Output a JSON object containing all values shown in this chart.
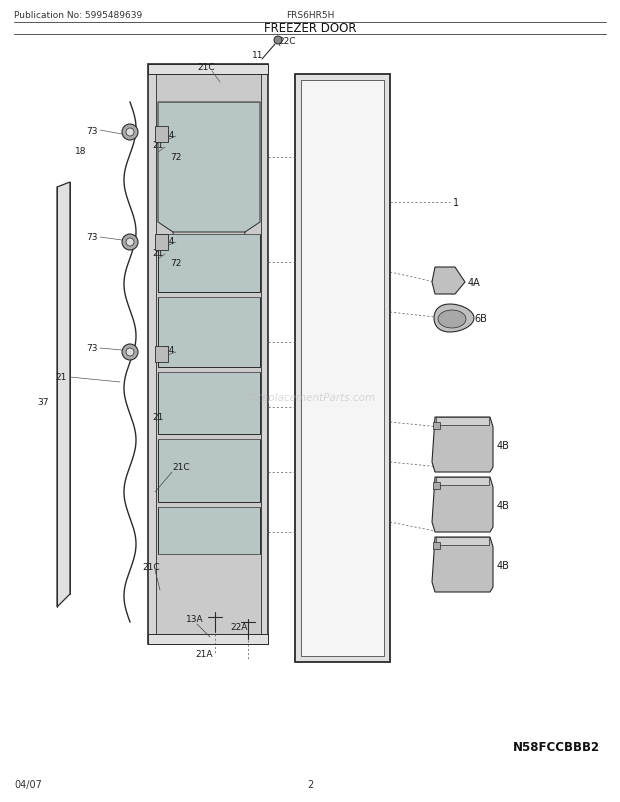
{
  "title": "FREEZER DOOR",
  "pub_no": "Publication No: 5995489639",
  "model": "FRS6HR5H",
  "diagram_code": "N58FCCBBB2",
  "date": "04/07",
  "page": "2",
  "bg_color": "#ffffff",
  "line_color": "#2a2a2a",
  "text_color": "#1a1a1a",
  "gray_fill": "#c8c8c8",
  "light_gray": "#e0e0e0",
  "mid_gray": "#b0b0b0",
  "dark_gray": "#888888"
}
